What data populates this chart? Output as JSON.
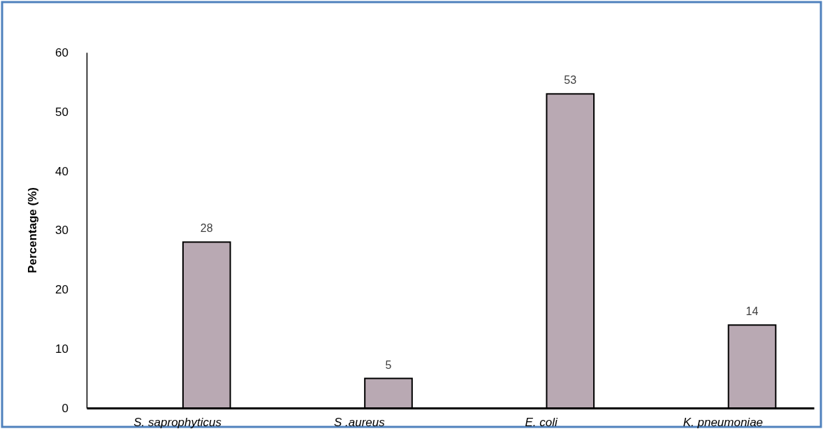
{
  "chart_data": {
    "type": "bar",
    "ylabel": "Percentage (%)",
    "categories": [
      "S. saprophyticus",
      "S .aureus",
      "E. coli",
      "K. pneumoniae"
    ],
    "values": [
      28,
      5,
      53,
      14
    ],
    "color": "#b9a9b3",
    "ylim": [
      0,
      60
    ],
    "yticks": [
      0,
      10,
      20,
      30,
      40,
      50,
      60
    ],
    "data_labels": true
  }
}
